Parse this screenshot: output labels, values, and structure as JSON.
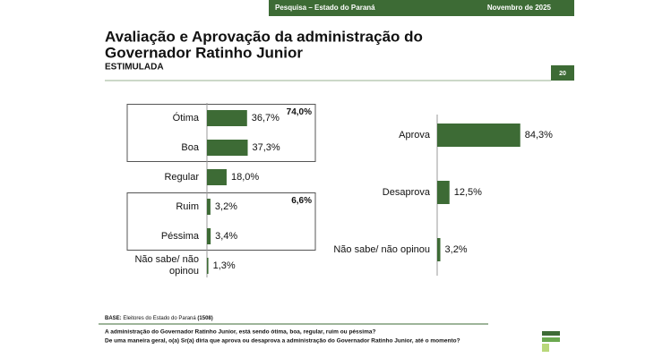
{
  "header": {
    "left": "Pesquisa – Estado do Paraná",
    "right": "Novembro de 2025"
  },
  "title": "Avaliação e Aprovação da administração do Governador Ratinho Junior",
  "title_lines": [
    "Avaliação e Aprovação da administração do",
    "Governador Ratinho Junior"
  ],
  "subtitle": "ESTIMULADA",
  "page_number": "20",
  "base": {
    "label": "BASE:",
    "text": "Eleitores do Estado do Paraná",
    "count": "(1508)"
  },
  "questions": [
    "A administração do Governador Ratinho Junior, está sendo ótima, boa, regular, ruim ou péssima?",
    "De uma maneira geral, o(a) Sr(a) diria que aprova ou desaprova a administração do Governador Ratinho Junior, até o momento?"
  ],
  "chart_data": [
    {
      "type": "bar",
      "orientation": "horizontal",
      "color": "#3d6b35",
      "categories": [
        "Ótima",
        "Boa",
        "Regular",
        "Ruim",
        "Péssima",
        "Não sabe/ não opinou"
      ],
      "values": [
        36.7,
        37.3,
        18.0,
        3.2,
        3.4,
        1.3
      ],
      "value_labels": [
        "36,7%",
        "37,3%",
        "18,0%",
        "3,2%",
        "3,4%",
        "1,3%"
      ],
      "group_totals": [
        {
          "value": 74.0,
          "label": "74,0%"
        },
        {
          "value": 6.6,
          "label": "6,6%"
        }
      ]
    },
    {
      "type": "bar",
      "orientation": "horizontal",
      "color": "#3d6b35",
      "categories": [
        "Aprova",
        "Desaprova",
        "Não sabe/ não opinou"
      ],
      "values": [
        84.3,
        12.5,
        3.2
      ],
      "value_labels": [
        "84,3%",
        "12,5%",
        "3,2%"
      ]
    }
  ]
}
